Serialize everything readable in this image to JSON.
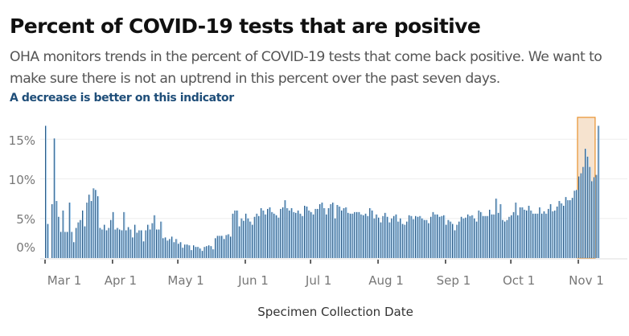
{
  "title": "Percent of COVID-19 tests that are positive",
  "subtitle": "OHA monitors trends in the percent of COVID-19 tests that come back positive. We want to make sure there is  not an uptrend in this percent over the past seven days.",
  "note": "A decrease is better on this indicator",
  "colors": {
    "bar_fill": "#a9cfee",
    "bar_edge": "#1f4e79",
    "highlight": "#e8912d",
    "highlight_fill": "#f6e3cf",
    "grid": "#eeeeee"
  },
  "chart_data": {
    "type": "bar",
    "xlabel": "Specimen Collection Date",
    "ylabel": "",
    "ylim": [
      0,
      17
    ],
    "y_ticks": [
      {
        "v": 0,
        "label": "0%"
      },
      {
        "v": 5,
        "label": "5%"
      },
      {
        "v": 10,
        "label": "10%"
      },
      {
        "v": 15,
        "label": "15%"
      }
    ],
    "x_ticks": [
      "Mar 1",
      "Apr 1",
      "May 1",
      "Jun 1",
      "Jul 1",
      "Aug 1",
      "Sep 1",
      "Oct 1",
      "Nov 1"
    ],
    "highlight_range": [
      "Nov 1",
      "Nov 8"
    ],
    "grid": true,
    "months": [
      {
        "month": "Mar",
        "values": [
          16.7,
          4.3,
          0,
          6.8,
          15.1,
          7.2,
          5.2,
          3.3,
          6,
          3.3,
          3.3,
          7,
          3.3,
          2,
          3.8,
          4.5,
          4.8,
          6,
          4,
          7,
          8,
          7.2,
          8.8,
          8.6,
          7.8,
          3.8,
          3.6,
          4.2,
          3.5,
          3.8,
          4.8
        ]
      },
      {
        "month": "Apr",
        "values": [
          5.8,
          3.6,
          3.8,
          3.6,
          3.5,
          5.8,
          3.5,
          3.9,
          3.6,
          2.6,
          4.2,
          3.2,
          3.5,
          3.5,
          2.1,
          3.5,
          4.2,
          3.6,
          4.4,
          5.4,
          3.6,
          3.6,
          4.6,
          2.5,
          2.6,
          2.2,
          2.4,
          2.7,
          2,
          2.4
        ]
      },
      {
        "month": "May",
        "values": [
          1.8,
          2,
          1.3,
          1.7,
          1.7,
          1.6,
          1,
          1.6,
          1.4,
          1.4,
          1.2,
          0.9,
          1.4,
          1.5,
          1.6,
          1.5,
          1.1,
          2.5,
          2.8,
          2.8,
          2.8,
          2.4,
          2.9,
          3,
          2.7,
          5.6,
          6,
          6,
          4,
          5,
          4.7
        ]
      },
      {
        "month": "Jun",
        "values": [
          5.6,
          5,
          4.6,
          4.2,
          5.2,
          5.6,
          5.3,
          6.3,
          6,
          5.5,
          6.2,
          6.4,
          5.8,
          5.6,
          5.4,
          5.1,
          6.2,
          6.4,
          7.3,
          6.3,
          6,
          6.3,
          5.8,
          5.7,
          6,
          5.6,
          5.3,
          6.6,
          6.5,
          6
        ]
      },
      {
        "month": "Jul",
        "values": [
          5.8,
          5.5,
          6.2,
          6.2,
          6.8,
          7,
          6.3,
          5.5,
          6.3,
          6.8,
          7,
          5,
          6.7,
          6.5,
          6,
          6.3,
          6.4,
          5.7,
          5.6,
          5.6,
          5.8,
          5.8,
          5.8,
          5.5,
          5.4,
          5.6,
          5.3,
          6.3,
          6,
          5,
          5.5
        ]
      },
      {
        "month": "Aug",
        "values": [
          5.1,
          4.5,
          5.3,
          5.7,
          5.2,
          4.5,
          5,
          5.3,
          5.5,
          4.6,
          5,
          4.3,
          4.2,
          4.6,
          5.4,
          5.3,
          4.9,
          5.3,
          5.2,
          5.3,
          5,
          4.8,
          4.8,
          4.4,
          5.2,
          5.8,
          5.5,
          5.5,
          5.2,
          5.3,
          5.4
        ]
      },
      {
        "month": "Sep",
        "values": [
          4.2,
          4.8,
          4.6,
          4.3,
          3.5,
          4.2,
          4.6,
          5.2,
          5,
          5.1,
          5.5,
          5.3,
          5.4,
          5,
          4.6,
          6,
          5.8,
          5.3,
          5.3,
          5.3,
          6.1,
          5.5,
          5.5,
          7.5,
          5.7,
          6.8,
          4.8,
          4.6,
          4.8,
          5.2
        ]
      },
      {
        "month": "Oct",
        "values": [
          5.4,
          5.8,
          7,
          5.4,
          6.4,
          6.4,
          6.1,
          6,
          6.6,
          6,
          5.6,
          5.6,
          5.6,
          6.4,
          5.6,
          5.9,
          5.6,
          6.2,
          6.8,
          5.9,
          6,
          6.5,
          7.2,
          6.9,
          6.6,
          7.7,
          7.3,
          7.3,
          7.6,
          8.5,
          8.6
        ]
      },
      {
        "month": "Nov",
        "values": [
          10.3,
          10.7,
          11.5,
          13.8,
          12.8,
          11.5,
          9.7,
          10.2,
          10.5,
          16.7
        ]
      }
    ]
  }
}
